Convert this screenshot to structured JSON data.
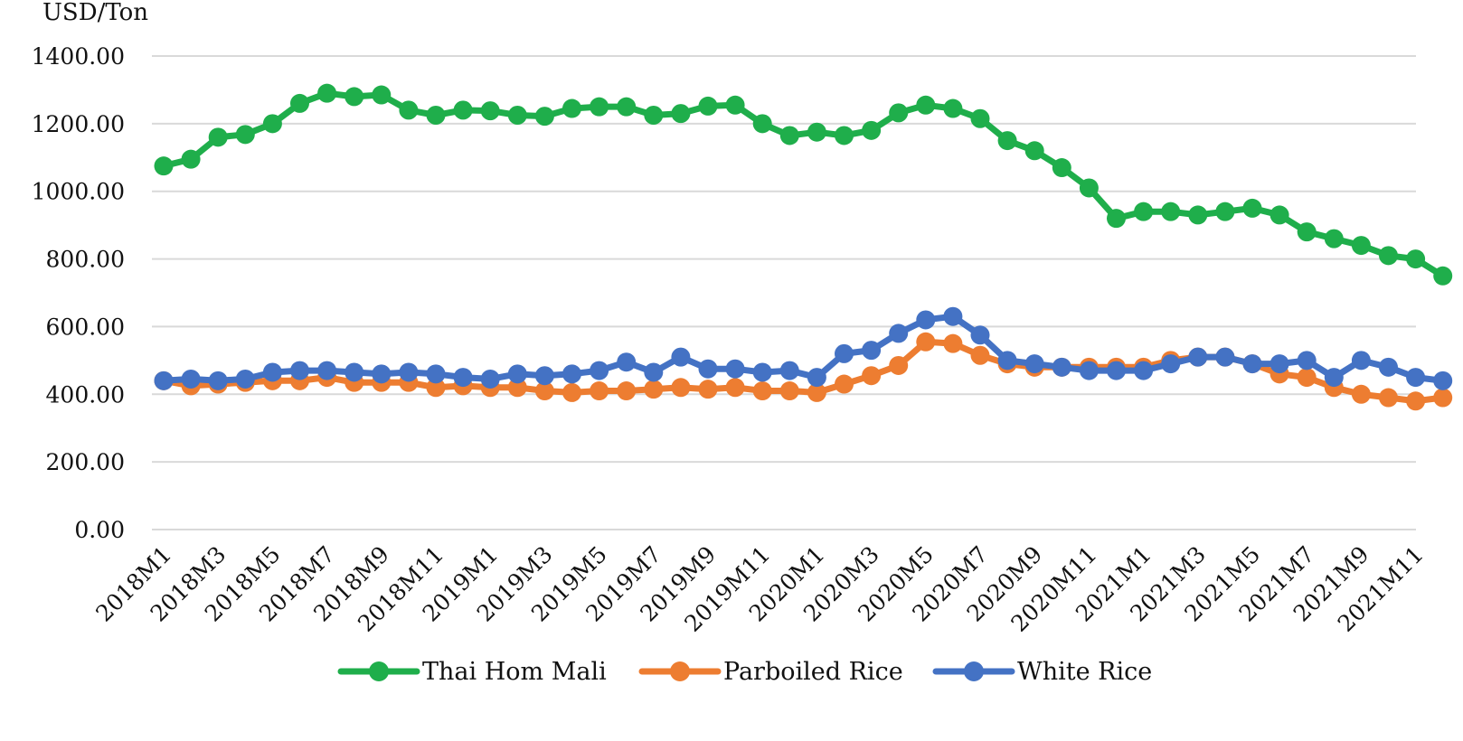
{
  "chart_data": {
    "type": "line",
    "ylabel": "USD/Ton",
    "ylim": [
      0,
      1400
    ],
    "yticks": [
      "0.00",
      "200.00",
      "400.00",
      "600.00",
      "800.00",
      "1000.00",
      "1200.00",
      "1400.00"
    ],
    "grid": true,
    "legend_position": "bottom",
    "x": [
      "2018M1",
      "2018M2",
      "2018M3",
      "2018M4",
      "2018M5",
      "2018M6",
      "2018M7",
      "2018M8",
      "2018M9",
      "2018M10",
      "2018M11",
      "2018M12",
      "2019M1",
      "2019M2",
      "2019M3",
      "2019M4",
      "2019M5",
      "2019M6",
      "2019M7",
      "2019M8",
      "2019M9",
      "2019M10",
      "2019M11",
      "2019M12",
      "2020M1",
      "2020M2",
      "2020M3",
      "2020M4",
      "2020M5",
      "2020M6",
      "2020M7",
      "2020M8",
      "2020M9",
      "2020M10",
      "2020M11",
      "2020M12",
      "2021M1",
      "2021M2",
      "2021M3",
      "2021M4",
      "2021M5",
      "2021M6",
      "2021M7",
      "2021M8",
      "2021M9",
      "2021M10",
      "2021M11",
      "2021M12"
    ],
    "xtick_labels": [
      "2018M1",
      "2018M3",
      "2018M5",
      "2018M7",
      "2018M9",
      "2018M11",
      "2019M1",
      "2019M3",
      "2019M5",
      "2019M7",
      "2019M9",
      "2019M11",
      "2020M1",
      "2020M3",
      "2020M5",
      "2020M7",
      "2020M9",
      "2020M11",
      "2021M1",
      "2021M3",
      "2021M5",
      "2021M7",
      "2021M9",
      "2021M11"
    ],
    "series": [
      {
        "name": "Thai Hom Mali",
        "color": "#1fae4b",
        "values": [
          1075,
          1095,
          1160,
          1168,
          1200,
          1260,
          1290,
          1280,
          1285,
          1240,
          1225,
          1240,
          1238,
          1225,
          1222,
          1245,
          1250,
          1250,
          1225,
          1230,
          1252,
          1255,
          1200,
          1165,
          1175,
          1165,
          1180,
          1232,
          1255,
          1245,
          1215,
          1150,
          1120,
          1070,
          1010,
          920,
          940,
          940,
          930,
          940,
          950,
          930,
          880,
          860,
          840,
          810,
          800,
          750
        ]
      },
      {
        "name": "Parboiled Rice",
        "color": "#ed7d31",
        "values": [
          440,
          425,
          430,
          435,
          440,
          440,
          450,
          435,
          435,
          435,
          420,
          425,
          420,
          420,
          410,
          405,
          410,
          410,
          415,
          420,
          415,
          420,
          410,
          410,
          405,
          430,
          455,
          485,
          555,
          550,
          515,
          490,
          480,
          480,
          480,
          480,
          480,
          500,
          510,
          510,
          490,
          460,
          450,
          420,
          400,
          390,
          380,
          390
        ]
      },
      {
        "name": "White Rice",
        "color": "#4472c4",
        "values": [
          440,
          445,
          440,
          445,
          465,
          470,
          470,
          465,
          460,
          465,
          460,
          450,
          445,
          460,
          455,
          460,
          470,
          495,
          465,
          510,
          475,
          475,
          465,
          470,
          450,
          520,
          530,
          580,
          620,
          630,
          575,
          500,
          490,
          480,
          470,
          470,
          470,
          490,
          510,
          510,
          490,
          490,
          500,
          450,
          500,
          480,
          450,
          440
        ]
      }
    ]
  }
}
